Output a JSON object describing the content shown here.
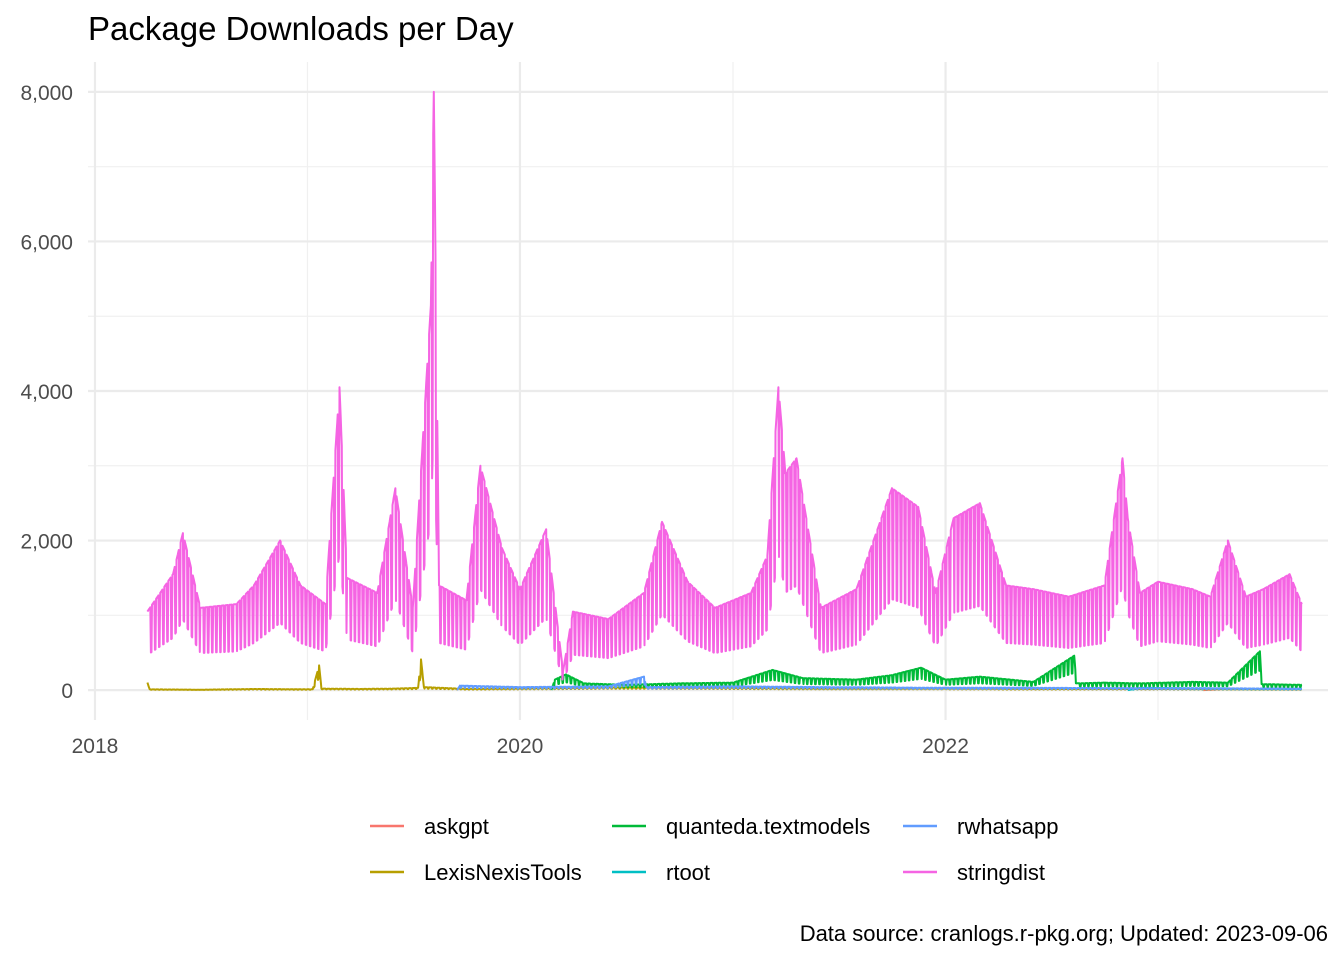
{
  "chart_data": {
    "type": "line",
    "title": "Package Downloads per Day",
    "xlabel": "",
    "ylabel": "",
    "caption": "Data source: cranlogs.r-pkg.org; Updated: 2023-09-06",
    "x_range": [
      "2017-12-20",
      "2023-10-20"
    ],
    "ylim": [
      -400,
      8400
    ],
    "x_ticks": [
      {
        "label": "2018",
        "date": "2018-01-01"
      },
      {
        "label": "2020",
        "date": "2020-01-01"
      },
      {
        "label": "2022",
        "date": "2022-01-01"
      }
    ],
    "y_ticks": [
      {
        "label": "0",
        "value": 0
      },
      {
        "label": "2,000",
        "value": 2000
      },
      {
        "label": "4,000",
        "value": 4000
      },
      {
        "label": "6,000",
        "value": 6000
      },
      {
        "label": "8,000",
        "value": 8000
      }
    ],
    "grid": true,
    "legend_position": "bottom",
    "series": [
      {
        "name": "askgpt",
        "color": "#F8766D",
        "points": [
          [
            "2023-03-20",
            0
          ],
          [
            "2023-05-01",
            20
          ],
          [
            "2023-07-01",
            15
          ],
          [
            "2023-09-05",
            10
          ]
        ]
      },
      {
        "name": "LexisNexisTools",
        "color": "#B79F00",
        "points": [
          [
            "2018-04-01",
            100
          ],
          [
            "2018-04-05",
            10
          ],
          [
            "2018-07-01",
            5
          ],
          [
            "2018-10-01",
            15
          ],
          [
            "2019-01-10",
            10
          ],
          [
            "2019-01-21",
            330
          ],
          [
            "2019-01-25",
            20
          ],
          [
            "2019-04-01",
            15
          ],
          [
            "2019-06-01",
            20
          ],
          [
            "2019-07-10",
            30
          ],
          [
            "2019-07-15",
            410
          ],
          [
            "2019-07-20",
            40
          ],
          [
            "2019-10-01",
            15
          ],
          [
            "2020-01-01",
            20
          ],
          [
            "2020-06-01",
            35
          ],
          [
            "2021-01-01",
            30
          ],
          [
            "2021-06-01",
            20
          ],
          [
            "2022-01-01",
            20
          ],
          [
            "2022-06-01",
            15
          ],
          [
            "2023-01-01",
            15
          ],
          [
            "2023-09-05",
            10
          ]
        ]
      },
      {
        "name": "quanteda.textmodels",
        "color": "#00BA38",
        "points": [
          [
            "2020-02-24",
            0
          ],
          [
            "2020-03-01",
            140
          ],
          [
            "2020-03-20",
            210
          ],
          [
            "2020-04-20",
            90
          ],
          [
            "2020-07-01",
            70
          ],
          [
            "2020-10-01",
            90
          ],
          [
            "2021-01-01",
            100
          ],
          [
            "2021-03-10",
            270
          ],
          [
            "2021-05-01",
            160
          ],
          [
            "2021-08-01",
            140
          ],
          [
            "2021-10-01",
            200
          ],
          [
            "2021-11-20",
            300
          ],
          [
            "2022-01-01",
            140
          ],
          [
            "2022-03-01",
            180
          ],
          [
            "2022-06-01",
            110
          ],
          [
            "2022-08-10",
            460
          ],
          [
            "2022-08-14",
            90
          ],
          [
            "2022-10-01",
            100
          ],
          [
            "2022-12-01",
            90
          ],
          [
            "2023-03-01",
            110
          ],
          [
            "2023-05-01",
            100
          ],
          [
            "2023-06-25",
            520
          ],
          [
            "2023-06-28",
            80
          ],
          [
            "2023-09-05",
            70
          ]
        ]
      },
      {
        "name": "rtoot",
        "color": "#00BFC4",
        "points": [
          [
            "2022-11-10",
            0
          ],
          [
            "2022-12-01",
            30
          ],
          [
            "2023-03-01",
            25
          ],
          [
            "2023-06-01",
            20
          ],
          [
            "2023-09-05",
            15
          ]
        ]
      },
      {
        "name": "rwhatsapp",
        "color": "#619CFF",
        "points": [
          [
            "2019-09-15",
            0
          ],
          [
            "2019-09-20",
            60
          ],
          [
            "2020-01-01",
            40
          ],
          [
            "2020-06-01",
            50
          ],
          [
            "2020-08-01",
            180
          ],
          [
            "2020-08-05",
            40
          ],
          [
            "2021-01-01",
            50
          ],
          [
            "2021-06-01",
            40
          ],
          [
            "2022-01-01",
            30
          ],
          [
            "2022-06-01",
            30
          ],
          [
            "2023-01-01",
            25
          ],
          [
            "2023-09-05",
            20
          ]
        ]
      },
      {
        "name": "stringdist",
        "color": "#F564E3",
        "points": [
          [
            "2018-04-01",
            1050
          ],
          [
            "2018-05-15",
            1550
          ],
          [
            "2018-06-01",
            2100
          ],
          [
            "2018-07-01",
            1100
          ],
          [
            "2018-09-01",
            1150
          ],
          [
            "2018-10-01",
            1400
          ],
          [
            "2018-11-15",
            2000
          ],
          [
            "2018-12-20",
            1400
          ],
          [
            "2019-02-01",
            1150
          ],
          [
            "2019-02-25",
            4050
          ],
          [
            "2019-03-10",
            1500
          ],
          [
            "2019-05-01",
            1300
          ],
          [
            "2019-06-01",
            2700
          ],
          [
            "2019-07-01",
            1100
          ],
          [
            "2019-08-01",
            5150
          ],
          [
            "2019-08-06",
            8000
          ],
          [
            "2019-08-15",
            1400
          ],
          [
            "2019-10-01",
            1200
          ],
          [
            "2019-10-25",
            3000
          ],
          [
            "2019-12-01",
            1900
          ],
          [
            "2020-01-01",
            1350
          ],
          [
            "2020-02-15",
            2150
          ],
          [
            "2020-03-15",
            250
          ],
          [
            "2020-04-01",
            1050
          ],
          [
            "2020-06-01",
            950
          ],
          [
            "2020-08-01",
            1300
          ],
          [
            "2020-09-01",
            2250
          ],
          [
            "2020-10-15",
            1450
          ],
          [
            "2020-12-01",
            1100
          ],
          [
            "2021-02-01",
            1300
          ],
          [
            "2021-03-01",
            1800
          ],
          [
            "2021-03-20",
            4050
          ],
          [
            "2021-04-01",
            2900
          ],
          [
            "2021-04-20",
            3100
          ],
          [
            "2021-06-01",
            1100
          ],
          [
            "2021-08-01",
            1350
          ],
          [
            "2021-10-01",
            2700
          ],
          [
            "2021-11-15",
            2450
          ],
          [
            "2021-12-15",
            1300
          ],
          [
            "2022-01-15",
            2300
          ],
          [
            "2022-03-01",
            2500
          ],
          [
            "2022-04-15",
            1400
          ],
          [
            "2022-06-01",
            1350
          ],
          [
            "2022-08-01",
            1250
          ],
          [
            "2022-10-01",
            1400
          ],
          [
            "2022-11-01",
            3100
          ],
          [
            "2022-11-10",
            2300
          ],
          [
            "2022-12-01",
            1300
          ],
          [
            "2023-01-01",
            1450
          ],
          [
            "2023-03-01",
            1350
          ],
          [
            "2023-04-01",
            1250
          ],
          [
            "2023-05-01",
            2000
          ],
          [
            "2023-06-01",
            1250
          ],
          [
            "2023-07-01",
            1350
          ],
          [
            "2023-08-15",
            1550
          ],
          [
            "2023-09-05",
            1150
          ]
        ]
      }
    ]
  }
}
